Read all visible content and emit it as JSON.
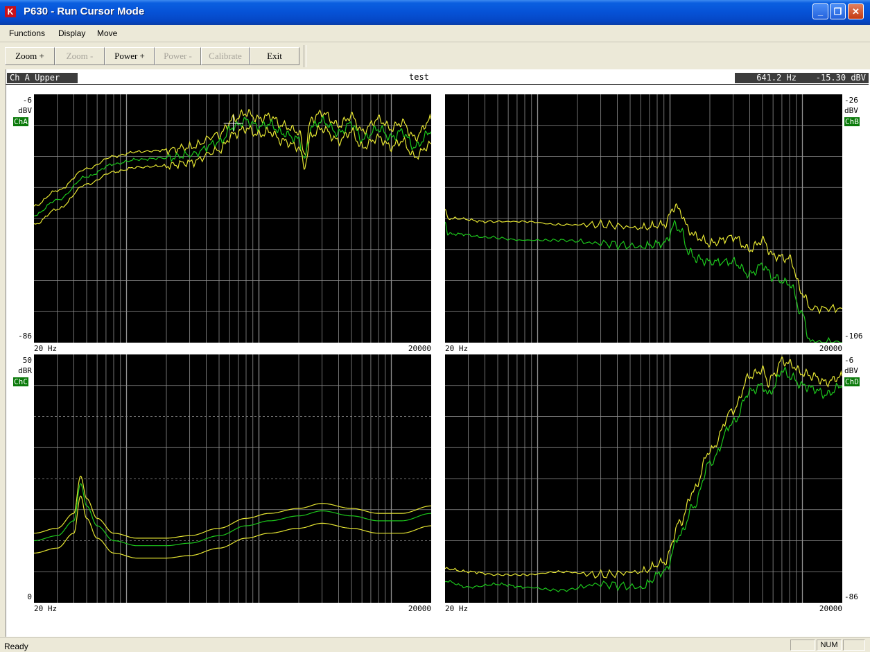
{
  "window": {
    "title": "P630 - Run Cursor Mode",
    "icon": "app-logo-icon"
  },
  "menu": [
    "Functions",
    "Display",
    "Move"
  ],
  "toolbar": [
    {
      "label": "Zoom +",
      "enabled": true
    },
    {
      "label": "Zoom -",
      "enabled": false
    },
    {
      "label": "Power +",
      "enabled": true
    },
    {
      "label": "Power -",
      "enabled": false
    },
    {
      "label": "Calibrate",
      "enabled": false
    },
    {
      "label": "Exit",
      "enabled": true
    }
  ],
  "info": {
    "channel": "Ch A Upper",
    "title": "test",
    "cursor_freq": "641.2 Hz",
    "cursor_level": "-15.30 dBV"
  },
  "colors": {
    "plot_bg": "#000000",
    "grid": "#909090",
    "upper_lower": "#e6e632",
    "mid": "#1cc81c",
    "badge": "#0a7a0a"
  },
  "plots": [
    {
      "channel": "ChA",
      "unit": "dBV",
      "top": "-6",
      "bottom": "-86",
      "x_start": "20 Hz",
      "x_end": "20000",
      "side": "left"
    },
    {
      "channel": "ChB",
      "unit": "dBV",
      "top": "-26",
      "bottom": "-106",
      "x_start": "20 Hz",
      "x_end": "20000",
      "side": "right"
    },
    {
      "channel": "ChC",
      "unit": "dBR",
      "top": "50",
      "bottom": "0",
      "x_start": "20 Hz",
      "x_end": "20000",
      "side": "left"
    },
    {
      "channel": "ChD",
      "unit": "dBV",
      "top": "-6",
      "bottom": "-86",
      "x_start": "20 Hz",
      "x_end": "20000",
      "side": "right"
    }
  ],
  "chart_data": [
    {
      "type": "line",
      "channel": "ChA",
      "x_scale": "log",
      "xlim": [
        20,
        20000
      ],
      "ylim": [
        -86,
        -6
      ],
      "grid": true,
      "cursor": {
        "x": 641.2,
        "y": -15.3
      },
      "series": [
        {
          "x": [
            20,
            30,
            50,
            80,
            120,
            200,
            300,
            500,
            640,
            800,
            1000,
            1200,
            1500,
            2000,
            2200,
            2500,
            3000,
            4000,
            5000,
            6000,
            8000,
            10000,
            12000,
            15000,
            20000
          ],
          "values": [
            -42,
            -37,
            -30,
            -26,
            -24.5,
            -24,
            -23,
            -19,
            -14,
            -12,
            -14,
            -13,
            -16,
            -18,
            -25,
            -14,
            -12,
            -16,
            -13,
            -18,
            -14,
            -17,
            -15,
            -20,
            -14
          ]
        },
        {
          "x": [
            20,
            30,
            50,
            80,
            120,
            200,
            300,
            500,
            640,
            800,
            1000,
            1200,
            1500,
            2000,
            2200,
            2500,
            3000,
            4000,
            5000,
            6000,
            8000,
            10000,
            12000,
            15000,
            20000
          ],
          "values": [
            -45,
            -40,
            -32.5,
            -28.5,
            -27,
            -26.5,
            -25.5,
            -21.5,
            -16.5,
            -14.5,
            -16.5,
            -15.5,
            -18.5,
            -20.5,
            -27,
            -16.5,
            -14.5,
            -18.5,
            -15.5,
            -20.5,
            -17,
            -20,
            -18,
            -23,
            -18
          ]
        },
        {
          "x": [
            20,
            30,
            50,
            80,
            120,
            200,
            300,
            500,
            640,
            800,
            1000,
            1200,
            1500,
            2000,
            2200,
            2500,
            3000,
            4000,
            5000,
            6000,
            8000,
            10000,
            12000,
            15000,
            20000
          ],
          "values": [
            -48,
            -43,
            -35,
            -31,
            -29.5,
            -29,
            -28,
            -24,
            -19,
            -17,
            -19,
            -18,
            -21,
            -23,
            -29,
            -19,
            -17,
            -21,
            -18,
            -23,
            -20,
            -23,
            -21,
            -26,
            -22
          ]
        }
      ]
    },
    {
      "type": "line",
      "channel": "ChB",
      "x_scale": "log",
      "xlim": [
        20,
        20000
      ],
      "ylim": [
        -106,
        -26
      ],
      "grid": true,
      "series": [
        {
          "x": [
            20,
            21,
            25,
            40,
            80,
            150,
            300,
            600,
            900,
            1100,
            1200,
            1400,
            1600,
            2000,
            3000,
            4000,
            5000,
            6000,
            8000,
            10000,
            11500,
            20000
          ],
          "values": [
            -63,
            -66,
            -66,
            -67,
            -67,
            -68,
            -68,
            -69,
            -68,
            -62,
            -64,
            -70,
            -72,
            -74,
            -72,
            -76,
            -73,
            -78,
            -79,
            -90,
            -95,
            -95
          ]
        },
        {
          "x": [
            20,
            21,
            25,
            40,
            80,
            150,
            300,
            600,
            900,
            1100,
            1200,
            1400,
            1600,
            2000,
            3000,
            4000,
            5000,
            6000,
            8000,
            10000,
            11500,
            20000
          ],
          "values": [
            -67,
            -71,
            -71,
            -72,
            -73,
            -73,
            -74,
            -75,
            -74,
            -68,
            -70,
            -77,
            -79,
            -80,
            -80,
            -84,
            -81,
            -85,
            -87,
            -97,
            -106,
            -106
          ]
        }
      ]
    },
    {
      "type": "line",
      "channel": "ChC",
      "x_scale": "log",
      "xlim": [
        20,
        20000
      ],
      "ylim": [
        0,
        50
      ],
      "grid": true,
      "series": [
        {
          "x": [
            20,
            30,
            40,
            45,
            50,
            60,
            80,
            120,
            200,
            300,
            500,
            800,
            1200,
            2000,
            3000,
            5000,
            8000,
            12000,
            20000
          ],
          "values": [
            14,
            15,
            18,
            25.5,
            21,
            17,
            14,
            13,
            13,
            13.5,
            15,
            17,
            18,
            19,
            20,
            19,
            18,
            18,
            19.5
          ]
        },
        {
          "x": [
            20,
            30,
            40,
            45,
            50,
            60,
            80,
            120,
            200,
            300,
            500,
            800,
            1200,
            2000,
            3000,
            5000,
            8000,
            12000,
            20000
          ],
          "values": [
            12.5,
            13.5,
            16.5,
            24,
            19.5,
            15.5,
            12.5,
            11.5,
            11.5,
            12,
            13.5,
            15.5,
            16.5,
            17.5,
            18.5,
            17.5,
            16.5,
            16.5,
            18
          ]
        },
        {
          "x": [
            20,
            30,
            40,
            45,
            50,
            60,
            80,
            120,
            200,
            300,
            500,
            800,
            1200,
            2000,
            3000,
            5000,
            8000,
            12000,
            20000
          ],
          "values": [
            10,
            11,
            14,
            21.5,
            17,
            13,
            10,
            9,
            9,
            9.5,
            11,
            13,
            14,
            15,
            16,
            15,
            14,
            14,
            15.5
          ]
        }
      ]
    },
    {
      "type": "line",
      "channel": "ChD",
      "x_scale": "log",
      "xlim": [
        20,
        20000
      ],
      "ylim": [
        -86,
        -6
      ],
      "grid": true,
      "series": [
        {
          "x": [
            20,
            30,
            50,
            80,
            150,
            300,
            600,
            900,
            1200,
            1500,
            2000,
            3000,
            4000,
            5000,
            5500,
            6000,
            7000,
            8000,
            10000,
            12000,
            15000,
            20000
          ],
          "values": [
            -75,
            -76,
            -77,
            -77,
            -76,
            -77,
            -76,
            -73,
            -60,
            -50,
            -37,
            -24,
            -13,
            -11,
            -15,
            -13,
            -8,
            -9,
            -12,
            -13,
            -15,
            -13
          ]
        },
        {
          "x": [
            20,
            30,
            50,
            80,
            150,
            300,
            600,
            900,
            1200,
            1500,
            2000,
            3000,
            4000,
            5000,
            5500,
            6000,
            7000,
            8000,
            10000,
            12000,
            15000,
            20000
          ],
          "values": [
            -79,
            -81,
            -80,
            -81,
            -82,
            -80,
            -81,
            -76,
            -64,
            -55,
            -41,
            -28,
            -18,
            -16,
            -19,
            -17,
            -11,
            -13,
            -16,
            -17,
            -19,
            -16
          ]
        }
      ]
    }
  ],
  "status": {
    "text": "Ready",
    "panes": [
      "",
      "NUM",
      ""
    ]
  }
}
